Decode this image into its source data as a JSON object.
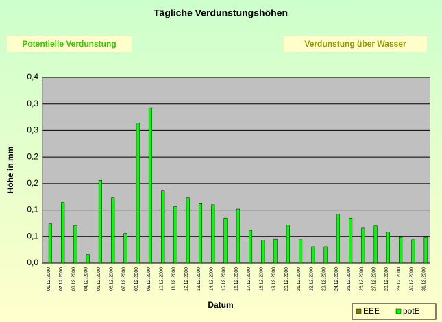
{
  "buttons": [
    "Potentielle Verdunstung",
    "Verdunstung über Wasser"
  ],
  "chart_data": {
    "type": "bar",
    "title": "Tägliche Verdunstungshöhen",
    "x_label": "Datum",
    "y_label": "Höhe in mm",
    "categories": [
      "01.12.2000",
      "02.12.2000",
      "03.12.2000",
      "04.12.2000",
      "05.12.2000",
      "06.12.2000",
      "07.12.2000",
      "08.12.2000",
      "09.12.2000",
      "10.12.2000",
      "11.12.2000",
      "12.12.2000",
      "13.12.2000",
      "14.12.2000",
      "15.12.2000",
      "16.12.2000",
      "17.12.2000",
      "18.12.2000",
      "19.12.2000",
      "20.12.2000",
      "21.12.2000",
      "22.12.2000",
      "23.12.2000",
      "24.12.2000",
      "25.12.2000",
      "26.12.2000",
      "27.12.2000",
      "28.12.2000",
      "29.12.2000",
      "30.12.2000",
      "31.12.2000"
    ],
    "series": [
      {
        "name": "EEE",
        "color": "#808000",
        "values": [
          null,
          null,
          null,
          null,
          null,
          null,
          null,
          null,
          null,
          null,
          null,
          null,
          null,
          null,
          null,
          null,
          null,
          null,
          null,
          null,
          null,
          null,
          null,
          null,
          null,
          null,
          null,
          null,
          null,
          null,
          null
        ]
      },
      {
        "name": "potE",
        "color": "#00ff00",
        "values": [
          0.074,
          0.114,
          0.071,
          0.016,
          0.156,
          0.123,
          0.056,
          0.264,
          0.293,
          0.136,
          0.107,
          0.123,
          0.112,
          0.11,
          0.085,
          0.102,
          0.062,
          0.043,
          0.045,
          0.072,
          0.044,
          0.031,
          0.031,
          0.092,
          0.085,
          0.066,
          0.07,
          0.059,
          0.049,
          0.044,
          0.049
        ]
      }
    ],
    "ylim": [
      0,
      0.35
    ],
    "yticks": [
      {
        "value": 0,
        "label": "0,0"
      },
      {
        "value": 0.05,
        "label": "0,1"
      },
      {
        "value": 0.1,
        "label": "0,1"
      },
      {
        "value": 0.15,
        "label": "0,2"
      },
      {
        "value": 0.2,
        "label": "0,2"
      },
      {
        "value": 0.25,
        "label": "0,3"
      },
      {
        "value": 0.3,
        "label": "0,3"
      },
      {
        "value": 0.35,
        "label": "0,4"
      }
    ],
    "grid": true,
    "legend": "bottom-right"
  }
}
